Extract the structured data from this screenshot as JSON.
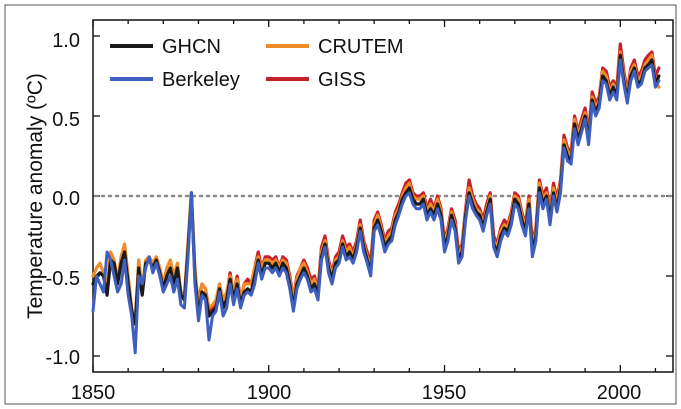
{
  "chart_data": {
    "type": "line",
    "title": "",
    "xlabel": "",
    "ylabel": "Temperature anomaly (ºC)",
    "xlim": [
      1850,
      2013
    ],
    "ylim": [
      -1.1,
      1.1
    ],
    "x_ticks": [
      "1850",
      "1900",
      "1950",
      "2000"
    ],
    "y_ticks": [
      "1.0",
      "0.5",
      "0.0",
      "-0.5",
      "-1.0"
    ],
    "zero_line": "dotted",
    "legend": "top-left, two columns",
    "series": [
      {
        "name": "GHCN",
        "color": "#1a1a1a",
        "start_year": 1850,
        "values": [
          -0.55,
          -0.5,
          -0.48,
          -0.5,
          -0.62,
          -0.4,
          -0.42,
          -0.55,
          -0.42,
          -0.35,
          -0.55,
          -0.72,
          -0.8,
          -0.45,
          -0.62,
          -0.42,
          -0.4,
          -0.45,
          -0.4,
          -0.48,
          -0.58,
          -0.5,
          -0.45,
          -0.55,
          -0.45,
          -0.62,
          -0.65,
          -0.35,
          0.02,
          -0.5,
          -0.75,
          -0.6,
          -0.62,
          -0.75,
          -0.72,
          -0.7,
          -0.58,
          -0.7,
          -0.65,
          -0.52,
          -0.65,
          -0.55,
          -0.68,
          -0.6,
          -0.58,
          -0.6,
          -0.5,
          -0.4,
          -0.5,
          -0.42,
          -0.42,
          -0.45,
          -0.42,
          -0.48,
          -0.42,
          -0.45,
          -0.55,
          -0.7,
          -0.55,
          -0.5,
          -0.45,
          -0.5,
          -0.58,
          -0.55,
          -0.62,
          -0.38,
          -0.3,
          -0.45,
          -0.52,
          -0.42,
          -0.4,
          -0.3,
          -0.38,
          -0.35,
          -0.4,
          -0.32,
          -0.2,
          -0.32,
          -0.4,
          -0.48,
          -0.2,
          -0.15,
          -0.22,
          -0.32,
          -0.28,
          -0.25,
          -0.15,
          -0.1,
          -0.02,
          0.02,
          0.05,
          -0.02,
          -0.05,
          -0.05,
          -0.02,
          -0.12,
          -0.08,
          -0.12,
          -0.05,
          -0.12,
          -0.32,
          -0.25,
          -0.12,
          -0.2,
          -0.4,
          -0.35,
          -0.12,
          0.02,
          -0.05,
          -0.1,
          -0.12,
          -0.2,
          -0.1,
          -0.02,
          -0.3,
          -0.35,
          -0.25,
          -0.2,
          -0.22,
          -0.15,
          -0.02,
          -0.05,
          -0.15,
          -0.22,
          -0.05,
          -0.35,
          -0.25,
          0.05,
          -0.05,
          0.0,
          -0.15,
          0.02,
          -0.08,
          0.05,
          0.32,
          0.25,
          0.22,
          0.45,
          0.35,
          0.42,
          0.5,
          0.35,
          0.6,
          0.52,
          0.58,
          0.75,
          0.72,
          0.62,
          0.68,
          0.62,
          0.88,
          0.72,
          0.6,
          0.75,
          0.8,
          0.7,
          0.72,
          0.8,
          0.82,
          0.85,
          0.7,
          0.75
        ]
      },
      {
        "name": "CRUTEM",
        "color": "#f08c28",
        "start_year": 1850,
        "values": [
          -0.5,
          -0.45,
          -0.42,
          -0.48,
          -0.58,
          -0.35,
          -0.4,
          -0.52,
          -0.38,
          -0.3,
          -0.5,
          -0.7,
          -0.78,
          -0.4,
          -0.58,
          -0.4,
          -0.38,
          -0.42,
          -0.38,
          -0.45,
          -0.55,
          -0.45,
          -0.4,
          -0.5,
          -0.42,
          -0.6,
          -0.62,
          -0.3,
          0.02,
          -0.45,
          -0.7,
          -0.55,
          -0.58,
          -0.7,
          -0.68,
          -0.65,
          -0.55,
          -0.65,
          -0.6,
          -0.5,
          -0.6,
          -0.52,
          -0.65,
          -0.55,
          -0.55,
          -0.55,
          -0.45,
          -0.38,
          -0.45,
          -0.4,
          -0.4,
          -0.42,
          -0.4,
          -0.45,
          -0.4,
          -0.42,
          -0.52,
          -0.65,
          -0.52,
          -0.45,
          -0.42,
          -0.48,
          -0.55,
          -0.52,
          -0.6,
          -0.35,
          -0.28,
          -0.42,
          -0.5,
          -0.4,
          -0.38,
          -0.28,
          -0.35,
          -0.32,
          -0.38,
          -0.3,
          -0.18,
          -0.3,
          -0.38,
          -0.45,
          -0.18,
          -0.12,
          -0.2,
          -0.3,
          -0.25,
          -0.22,
          -0.12,
          -0.08,
          0.0,
          0.05,
          0.08,
          0.0,
          -0.02,
          -0.02,
          0.0,
          -0.1,
          -0.05,
          -0.1,
          -0.02,
          -0.1,
          -0.3,
          -0.22,
          -0.1,
          -0.18,
          -0.38,
          -0.32,
          -0.1,
          0.05,
          -0.02,
          -0.08,
          -0.1,
          -0.18,
          -0.08,
          0.0,
          -0.28,
          -0.32,
          -0.22,
          -0.18,
          -0.2,
          -0.12,
          0.0,
          -0.02,
          -0.12,
          -0.2,
          -0.02,
          -0.32,
          -0.22,
          0.08,
          -0.02,
          0.02,
          -0.12,
          0.05,
          -0.05,
          0.08,
          0.35,
          0.28,
          0.25,
          0.48,
          0.38,
          0.45,
          0.52,
          0.38,
          0.62,
          0.55,
          0.6,
          0.78,
          0.75,
          0.65,
          0.7,
          0.65,
          0.9,
          0.75,
          0.62,
          0.78,
          0.82,
          0.72,
          0.75,
          0.82,
          0.85,
          0.88,
          0.72,
          0.68
        ]
      },
      {
        "name": "Berkeley",
        "color": "#3f5fbf",
        "start_year": 1850,
        "values": [
          -0.72,
          -0.5,
          -0.55,
          -0.6,
          -0.35,
          -0.4,
          -0.5,
          -0.6,
          -0.55,
          -0.4,
          -0.62,
          -0.75,
          -0.98,
          -0.5,
          -0.55,
          -0.45,
          -0.38,
          -0.48,
          -0.42,
          -0.5,
          -0.6,
          -0.55,
          -0.5,
          -0.6,
          -0.52,
          -0.68,
          -0.7,
          -0.4,
          0.02,
          -0.55,
          -0.78,
          -0.62,
          -0.65,
          -0.9,
          -0.75,
          -0.72,
          -0.6,
          -0.75,
          -0.7,
          -0.55,
          -0.68,
          -0.58,
          -0.7,
          -0.62,
          -0.6,
          -0.62,
          -0.55,
          -0.42,
          -0.52,
          -0.45,
          -0.45,
          -0.48,
          -0.45,
          -0.5,
          -0.45,
          -0.48,
          -0.58,
          -0.72,
          -0.58,
          -0.52,
          -0.48,
          -0.52,
          -0.6,
          -0.58,
          -0.65,
          -0.4,
          -0.32,
          -0.48,
          -0.55,
          -0.45,
          -0.42,
          -0.32,
          -0.4,
          -0.38,
          -0.42,
          -0.35,
          -0.22,
          -0.35,
          -0.42,
          -0.5,
          -0.22,
          -0.18,
          -0.25,
          -0.35,
          -0.3,
          -0.28,
          -0.18,
          -0.12,
          -0.05,
          0.0,
          0.02,
          -0.05,
          -0.08,
          -0.08,
          -0.05,
          -0.15,
          -0.1,
          -0.15,
          -0.08,
          -0.15,
          -0.35,
          -0.28,
          -0.15,
          -0.22,
          -0.42,
          -0.38,
          -0.15,
          0.0,
          -0.08,
          -0.12,
          -0.15,
          -0.22,
          -0.12,
          -0.05,
          -0.32,
          -0.38,
          -0.28,
          -0.22,
          -0.25,
          -0.18,
          -0.05,
          -0.08,
          -0.18,
          -0.25,
          -0.08,
          -0.38,
          -0.28,
          0.02,
          -0.08,
          -0.02,
          -0.18,
          0.0,
          -0.1,
          0.02,
          0.3,
          0.22,
          0.2,
          0.42,
          0.32,
          0.4,
          0.48,
          0.32,
          0.58,
          0.5,
          0.55,
          0.72,
          0.7,
          0.6,
          0.65,
          0.6,
          0.85,
          0.7,
          0.58,
          0.72,
          0.78,
          0.68,
          0.7,
          0.78,
          0.8,
          0.82,
          0.68,
          0.72
        ]
      },
      {
        "name": "GISS",
        "color": "#c8202a",
        "start_year": 1880,
        "values": [
          -0.65,
          -0.55,
          -0.58,
          -0.72,
          -0.7,
          -0.68,
          -0.55,
          -0.68,
          -0.62,
          -0.48,
          -0.62,
          -0.5,
          -0.65,
          -0.55,
          -0.52,
          -0.55,
          -0.45,
          -0.35,
          -0.45,
          -0.38,
          -0.38,
          -0.4,
          -0.38,
          -0.45,
          -0.38,
          -0.4,
          -0.5,
          -0.65,
          -0.5,
          -0.45,
          -0.4,
          -0.45,
          -0.52,
          -0.5,
          -0.58,
          -0.32,
          -0.25,
          -0.4,
          -0.48,
          -0.38,
          -0.35,
          -0.25,
          -0.32,
          -0.3,
          -0.35,
          -0.28,
          -0.15,
          -0.28,
          -0.35,
          -0.42,
          -0.15,
          -0.1,
          -0.18,
          -0.28,
          -0.22,
          -0.2,
          -0.1,
          -0.05,
          0.02,
          0.08,
          0.1,
          0.02,
          0.0,
          0.0,
          0.02,
          -0.08,
          -0.02,
          -0.08,
          0.0,
          -0.08,
          -0.28,
          -0.2,
          -0.08,
          -0.15,
          -0.35,
          -0.3,
          -0.08,
          0.1,
          0.0,
          -0.05,
          -0.08,
          -0.15,
          -0.05,
          0.02,
          -0.25,
          -0.3,
          -0.2,
          -0.15,
          -0.18,
          -0.1,
          0.02,
          0.0,
          -0.1,
          -0.18,
          0.0,
          -0.3,
          -0.2,
          0.1,
          0.0,
          0.05,
          -0.1,
          0.08,
          -0.02,
          0.1,
          0.38,
          0.3,
          0.28,
          0.5,
          0.4,
          0.48,
          0.55,
          0.4,
          0.65,
          0.58,
          0.62,
          0.8,
          0.78,
          0.68,
          0.72,
          0.68,
          0.95,
          0.78,
          0.65,
          0.8,
          0.85,
          0.75,
          0.78,
          0.85,
          0.88,
          0.9,
          0.75,
          0.8
        ]
      }
    ]
  }
}
